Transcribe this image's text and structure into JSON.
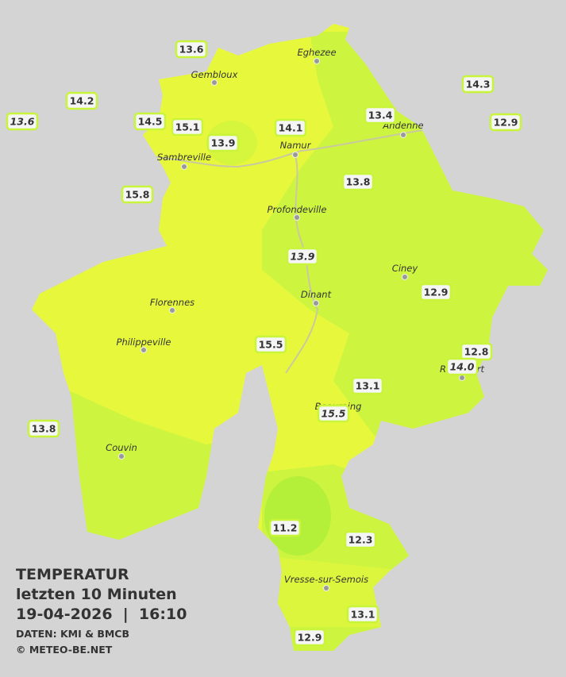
{
  "title": {
    "line1": "TEMPERATUR",
    "line2": "letzten 10 Minuten",
    "line3": "19-04-2026  |  16:10",
    "source": "DATEN: KMI & BMCB",
    "copyright": "© METEO-BE.NET"
  },
  "cities": [
    "Eghezee",
    "Gembloux",
    "Andenne",
    "Namur",
    "Sambreville",
    "Profondeville",
    "Ciney",
    "Dinant",
    "Florennes",
    "Philippeville",
    "Rochefort",
    "Beauraing",
    "Couvin",
    "Vresse-sur-Semois"
  ],
  "stations": [
    "13.6",
    "14.2",
    "13.6",
    "14.5",
    "15.1",
    "13.9",
    "14.1",
    "13.4",
    "14.3",
    "12.9",
    "15.8",
    "13.8",
    "13.9",
    "12.9",
    "15.5",
    "12.8",
    "14.0",
    "13.1",
    "15.5",
    "13.8",
    "11.2",
    "12.3",
    "13.1",
    "12.9"
  ]
}
